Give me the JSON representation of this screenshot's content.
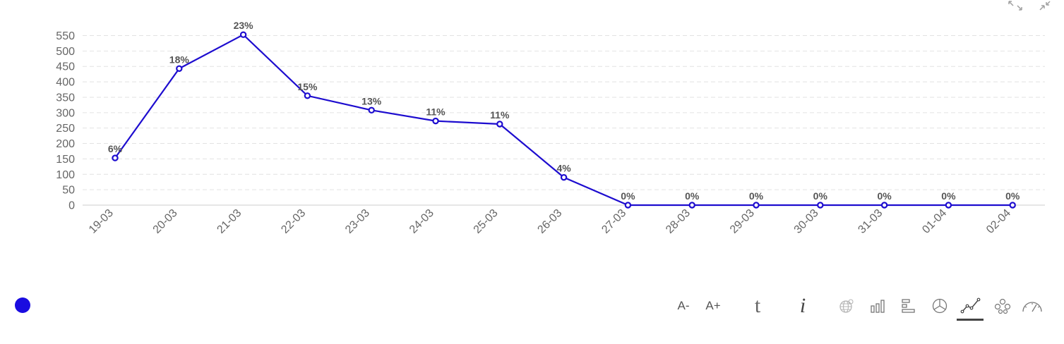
{
  "colors": {
    "series": "#1d0ccf",
    "legend_dot": "#1a0ce0"
  },
  "chart_data": {
    "type": "line",
    "categories": [
      "19-03",
      "20-03",
      "21-03",
      "22-03",
      "23-03",
      "24-03",
      "25-03",
      "26-03",
      "27-03",
      "28-03",
      "29-03",
      "30-03",
      "31-03",
      "01-04",
      "02-04"
    ],
    "series": [
      {
        "values": [
          153,
          443,
          553,
          355,
          308,
          273,
          263,
          90,
          0,
          0,
          0,
          0,
          0,
          0,
          0
        ],
        "labels": [
          "6%",
          "18%",
          "23%",
          "15%",
          "13%",
          "11%",
          "11%",
          "4%",
          "0%",
          "0%",
          "0%",
          "0%",
          "0%",
          "0%",
          "0%"
        ]
      }
    ],
    "yticks": [
      0,
      50,
      100,
      150,
      200,
      250,
      300,
      350,
      400,
      450,
      500,
      550
    ],
    "ylim": [
      0,
      550
    ],
    "grid": true,
    "legend": "bottom-left"
  },
  "toolbar": {
    "font_decrease": "A-",
    "font_increase": "A+",
    "text_view_glyph": "t",
    "info_glyph": "i",
    "icons": [
      "map-icon",
      "bar-chart-icon",
      "horizontal-bar-icon",
      "pie-chart-icon",
      "line-chart-icon",
      "scatter-icon",
      "gauge-icon"
    ],
    "active": "line-chart-icon"
  },
  "top_icons": [
    "expand-icon",
    "collapse-icon"
  ]
}
